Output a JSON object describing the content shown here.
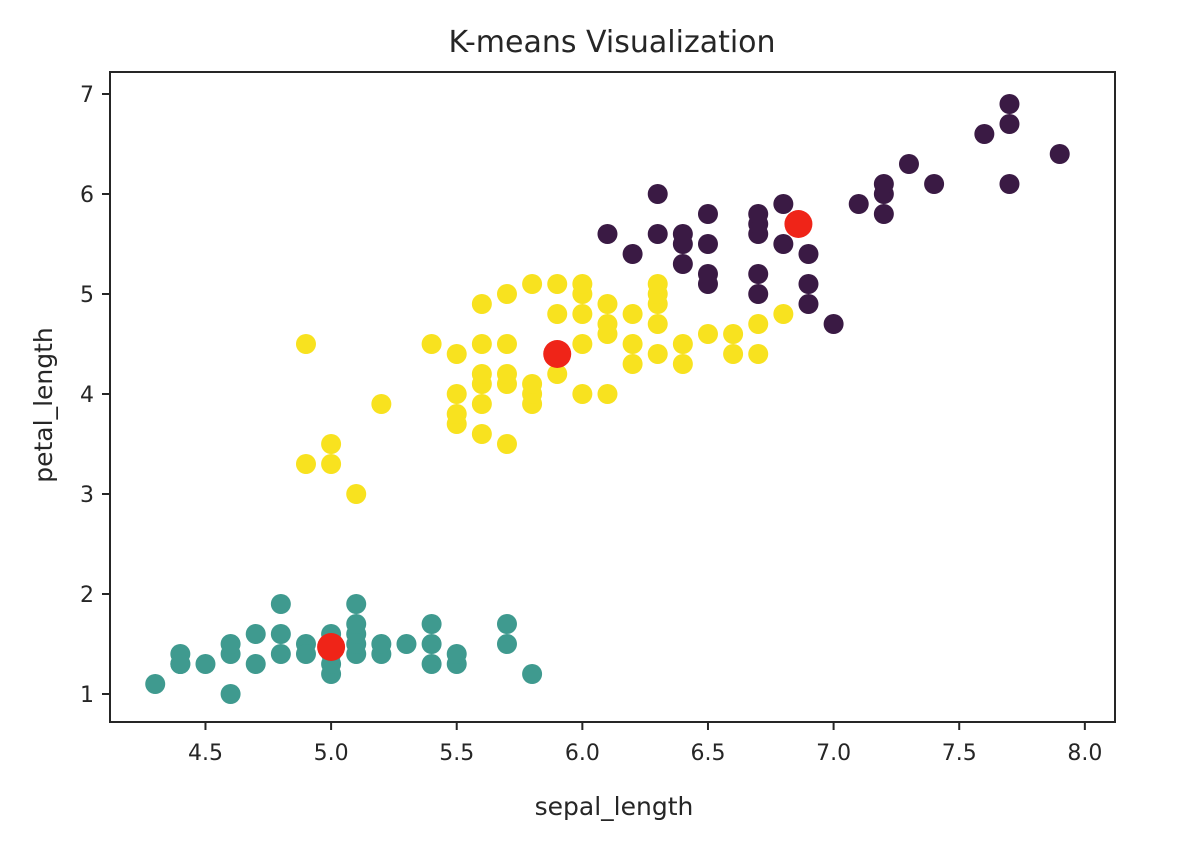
{
  "chart_data": {
    "type": "scatter",
    "title": "K-means Visualization",
    "xlabel": "sepal_length",
    "ylabel": "petal_length",
    "xlim": [
      4.12,
      8.12
    ],
    "ylim": [
      0.72,
      7.22
    ],
    "xticks": [
      4.5,
      5.0,
      5.5,
      6.0,
      6.5,
      7.0,
      7.5,
      8.0
    ],
    "xtick_labels": [
      "4.5",
      "5.0",
      "5.5",
      "6.0",
      "6.5",
      "7.0",
      "7.5",
      "8.0"
    ],
    "yticks": [
      1,
      2,
      3,
      4,
      5,
      6,
      7
    ],
    "ytick_labels": [
      "1",
      "2",
      "3",
      "4",
      "5",
      "6",
      "7"
    ],
    "grid": false,
    "colors": {
      "cluster_teal": "#3f9a8f",
      "cluster_yellow": "#f8e21f",
      "cluster_purple": "#3a1a44",
      "centroid": "#ef2418",
      "axis": "#262626"
    },
    "series": [
      {
        "color": "#3f9a8f",
        "points": [
          [
            4.3,
            1.1
          ],
          [
            4.4,
            1.3
          ],
          [
            4.4,
            1.4
          ],
          [
            4.4,
            1.3
          ],
          [
            4.5,
            1.3
          ],
          [
            4.6,
            1.0
          ],
          [
            4.6,
            1.4
          ],
          [
            4.6,
            1.5
          ],
          [
            4.7,
            1.3
          ],
          [
            4.7,
            1.6
          ],
          [
            4.8,
            1.4
          ],
          [
            4.8,
            1.6
          ],
          [
            4.8,
            1.9
          ],
          [
            4.9,
            1.5
          ],
          [
            4.9,
            1.4
          ],
          [
            5.0,
            1.2
          ],
          [
            5.0,
            1.3
          ],
          [
            5.0,
            1.4
          ],
          [
            5.0,
            1.5
          ],
          [
            5.0,
            1.6
          ],
          [
            5.1,
            1.4
          ],
          [
            5.1,
            1.5
          ],
          [
            5.1,
            1.6
          ],
          [
            5.1,
            1.7
          ],
          [
            5.1,
            1.9
          ],
          [
            5.2,
            1.4
          ],
          [
            5.2,
            1.5
          ],
          [
            5.3,
            1.5
          ],
          [
            5.4,
            1.3
          ],
          [
            5.4,
            1.5
          ],
          [
            5.4,
            1.7
          ],
          [
            5.5,
            1.3
          ],
          [
            5.5,
            1.4
          ],
          [
            5.7,
            1.5
          ],
          [
            5.7,
            1.7
          ],
          [
            5.8,
            1.2
          ]
        ]
      },
      {
        "color": "#f8e21f",
        "points": [
          [
            4.9,
            4.5
          ],
          [
            4.9,
            3.3
          ],
          [
            5.0,
            3.3
          ],
          [
            5.0,
            3.5
          ],
          [
            5.1,
            3.0
          ],
          [
            5.2,
            3.9
          ],
          [
            5.4,
            4.5
          ],
          [
            5.5,
            3.7
          ],
          [
            5.5,
            3.8
          ],
          [
            5.5,
            4.0
          ],
          [
            5.5,
            4.4
          ],
          [
            5.6,
            3.6
          ],
          [
            5.6,
            3.9
          ],
          [
            5.6,
            4.1
          ],
          [
            5.6,
            4.2
          ],
          [
            5.6,
            4.5
          ],
          [
            5.6,
            4.9
          ],
          [
            5.7,
            3.5
          ],
          [
            5.7,
            4.1
          ],
          [
            5.7,
            4.2
          ],
          [
            5.7,
            4.5
          ],
          [
            5.7,
            5.0
          ],
          [
            5.8,
            3.9
          ],
          [
            5.8,
            4.0
          ],
          [
            5.8,
            4.1
          ],
          [
            5.8,
            5.1
          ],
          [
            5.9,
            4.2
          ],
          [
            5.9,
            4.8
          ],
          [
            5.9,
            5.1
          ],
          [
            6.0,
            4.0
          ],
          [
            6.0,
            4.5
          ],
          [
            6.0,
            4.8
          ],
          [
            6.0,
            5.0
          ],
          [
            6.0,
            5.1
          ],
          [
            6.1,
            4.0
          ],
          [
            6.1,
            4.6
          ],
          [
            6.1,
            4.7
          ],
          [
            6.1,
            4.9
          ],
          [
            6.2,
            4.3
          ],
          [
            6.2,
            4.5
          ],
          [
            6.2,
            4.8
          ],
          [
            6.3,
            4.4
          ],
          [
            6.3,
            4.7
          ],
          [
            6.3,
            4.9
          ],
          [
            6.3,
            5.0
          ],
          [
            6.3,
            5.1
          ],
          [
            6.4,
            4.3
          ],
          [
            6.4,
            4.5
          ],
          [
            6.5,
            4.6
          ],
          [
            6.6,
            4.4
          ],
          [
            6.6,
            4.6
          ],
          [
            6.7,
            4.4
          ],
          [
            6.7,
            4.7
          ],
          [
            6.8,
            4.8
          ]
        ]
      },
      {
        "color": "#3a1a44",
        "points": [
          [
            6.1,
            5.6
          ],
          [
            6.2,
            5.4
          ],
          [
            6.3,
            5.6
          ],
          [
            6.3,
            6.0
          ],
          [
            6.4,
            5.3
          ],
          [
            6.4,
            5.5
          ],
          [
            6.4,
            5.6
          ],
          [
            6.5,
            5.1
          ],
          [
            6.5,
            5.2
          ],
          [
            6.5,
            5.5
          ],
          [
            6.5,
            5.8
          ],
          [
            6.7,
            5.0
          ],
          [
            6.7,
            5.2
          ],
          [
            6.7,
            5.6
          ],
          [
            6.7,
            5.7
          ],
          [
            6.7,
            5.8
          ],
          [
            6.8,
            5.5
          ],
          [
            6.8,
            5.9
          ],
          [
            6.9,
            4.9
          ],
          [
            6.9,
            5.1
          ],
          [
            6.9,
            5.4
          ],
          [
            7.0,
            4.7
          ],
          [
            7.1,
            5.9
          ],
          [
            7.2,
            5.8
          ],
          [
            7.2,
            6.0
          ],
          [
            7.2,
            6.1
          ],
          [
            7.3,
            6.3
          ],
          [
            7.4,
            6.1
          ],
          [
            7.6,
            6.6
          ],
          [
            7.7,
            6.1
          ],
          [
            7.7,
            6.7
          ],
          [
            7.7,
            6.9
          ],
          [
            7.9,
            6.4
          ]
        ]
      },
      {
        "color": "#ef2418",
        "points": [
          [
            5.0,
            1.47
          ],
          [
            5.9,
            4.4
          ],
          [
            6.86,
            5.7
          ]
        ]
      }
    ]
  }
}
